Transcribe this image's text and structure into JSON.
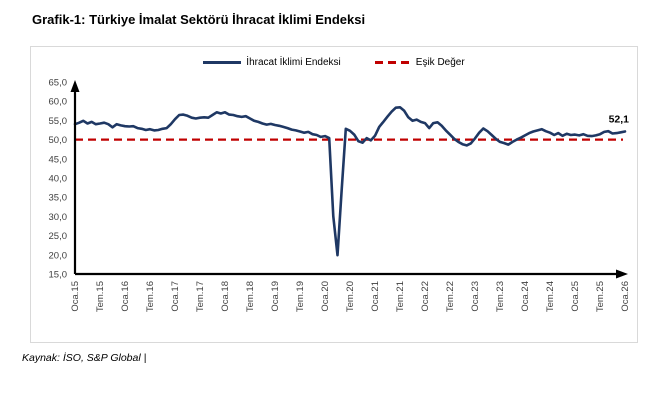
{
  "page": {
    "title": "Grafik-1: Türkiye İmalat Sektörü İhracat İklimi Endeksi",
    "source": "Kaynak: İSO, S&P Global |"
  },
  "legend": {
    "series_label": "İhracat İklimi Endeksi",
    "threshold_label": "Eşik Değer"
  },
  "colors": {
    "series": "#1F3864",
    "threshold": "#C00000",
    "axis": "#000000",
    "tick_text": "#3f3f3f",
    "frame_border": "#D9D9D9"
  },
  "chart_data": {
    "type": "line",
    "title": "Grafik-1: Türkiye İmalat Sektörü İhracat İklimi Endeksi",
    "xlabel": "",
    "ylabel": "",
    "ylim": [
      15,
      65
    ],
    "y_tick_step": 5,
    "y_tick_labels": [
      "15,0",
      "20,0",
      "25,0",
      "30,0",
      "35,0",
      "40,0",
      "45,0",
      "50,0",
      "55,0",
      "60,0",
      "65,0"
    ],
    "x_tick_labels": [
      "Oca.15",
      "Tem.15",
      "Oca.16",
      "Tem.16",
      "Oca.17",
      "Tem.17",
      "Oca.18",
      "Tem.18",
      "Oca.19",
      "Tem.19",
      "Oca.20",
      "Tem.20",
      "Oca.21",
      "Tem.21",
      "Oca.22",
      "Tem.22",
      "Oca.23",
      "Tem.23",
      "Oca.24",
      "Tem.24",
      "Oca.25",
      "Tem.25",
      "Oca.26"
    ],
    "x_ticks_every_n_points": 6,
    "x_interval_months": 1,
    "grid": false,
    "legend_position": "top-center",
    "series": [
      {
        "name": "İhracat İklimi Endeksi",
        "color": "#1F3864",
        "values": [
          54.0,
          54.4,
          54.9,
          54.2,
          54.6,
          54.0,
          54.2,
          54.4,
          54.0,
          53.2,
          54.0,
          53.7,
          53.5,
          53.4,
          53.5,
          53.0,
          52.8,
          52.5,
          52.7,
          52.4,
          52.5,
          52.8,
          53.0,
          54.0,
          55.3,
          56.4,
          56.5,
          56.2,
          55.7,
          55.5,
          55.7,
          55.8,
          55.7,
          56.4,
          57.1,
          56.8,
          57.1,
          56.5,
          56.4,
          56.1,
          55.9,
          56.1,
          55.5,
          54.9,
          54.6,
          54.2,
          53.9,
          54.1,
          53.8,
          53.6,
          53.3,
          53.0,
          52.6,
          52.4,
          52.1,
          51.8,
          52.0,
          51.4,
          51.2,
          50.7,
          50.9,
          50.4,
          30.0,
          19.9,
          37.0,
          52.8,
          52.3,
          51.3,
          49.6,
          49.2,
          50.4,
          49.8,
          51.0,
          53.3,
          54.6,
          56.0,
          57.3,
          58.3,
          58.4,
          57.5,
          55.8,
          54.9,
          55.2,
          54.6,
          54.3,
          53.0,
          54.3,
          54.5,
          53.6,
          52.4,
          51.3,
          50.2,
          49.4,
          48.8,
          48.5,
          49.0,
          50.3,
          51.8,
          52.9,
          52.2,
          51.2,
          50.2,
          49.4,
          49.1,
          48.7,
          49.4,
          50.0,
          50.5,
          51.1,
          51.7,
          52.1,
          52.4,
          52.7,
          52.2,
          51.8,
          51.2,
          51.7,
          51.0,
          51.5,
          51.2,
          51.3,
          51.1,
          51.4,
          51.0,
          50.9,
          51.1,
          51.4,
          52.0,
          52.2,
          51.6,
          51.7,
          51.9,
          52.1
        ]
      }
    ],
    "threshold": {
      "name": "Eşik Değer",
      "value": 50,
      "color": "#C00000",
      "style": "dashed"
    },
    "last_value_label": "52,1"
  }
}
